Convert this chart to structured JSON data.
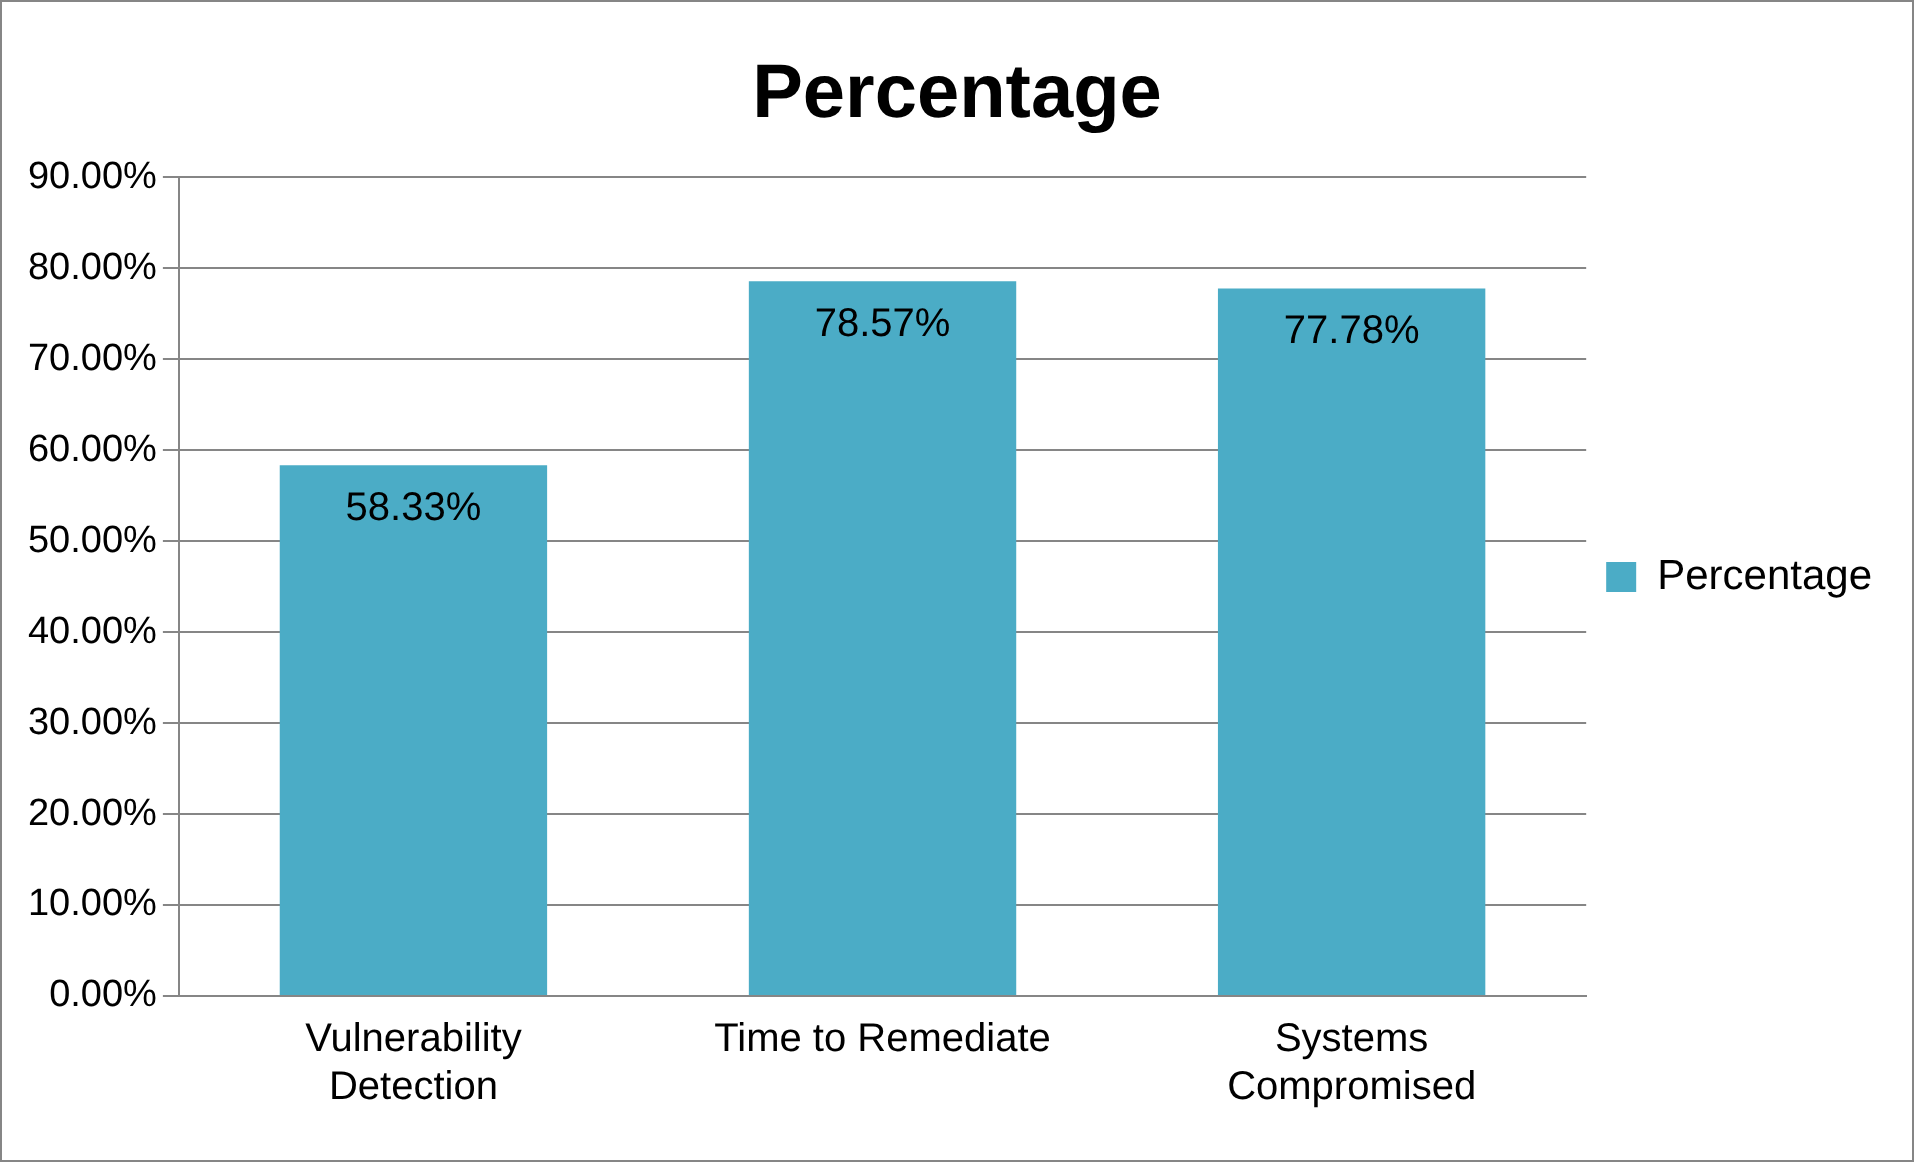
{
  "chart_data": {
    "type": "bar",
    "title": "Percentage",
    "categories": [
      "Vulnerability Detection",
      "Time to Remediate",
      "Systems Compromised"
    ],
    "series": [
      {
        "name": "Percentage",
        "color": "#4bacc6",
        "values": [
          58.33,
          78.57,
          77.78
        ],
        "value_labels": [
          "58.33%",
          "78.57%",
          "77.78%"
        ]
      }
    ],
    "ylim": [
      0,
      90
    ],
    "yticks": [
      {
        "value": 0,
        "label": "0.00%"
      },
      {
        "value": 10,
        "label": "10.00%"
      },
      {
        "value": 20,
        "label": "20.00%"
      },
      {
        "value": 30,
        "label": "30.00%"
      },
      {
        "value": 40,
        "label": "40.00%"
      },
      {
        "value": 50,
        "label": "50.00%"
      },
      {
        "value": 60,
        "label": "60.00%"
      },
      {
        "value": 70,
        "label": "70.00%"
      },
      {
        "value": 80,
        "label": "80.00%"
      },
      {
        "value": 90,
        "label": "90.00%"
      }
    ],
    "grid": "y",
    "legend": "right"
  }
}
